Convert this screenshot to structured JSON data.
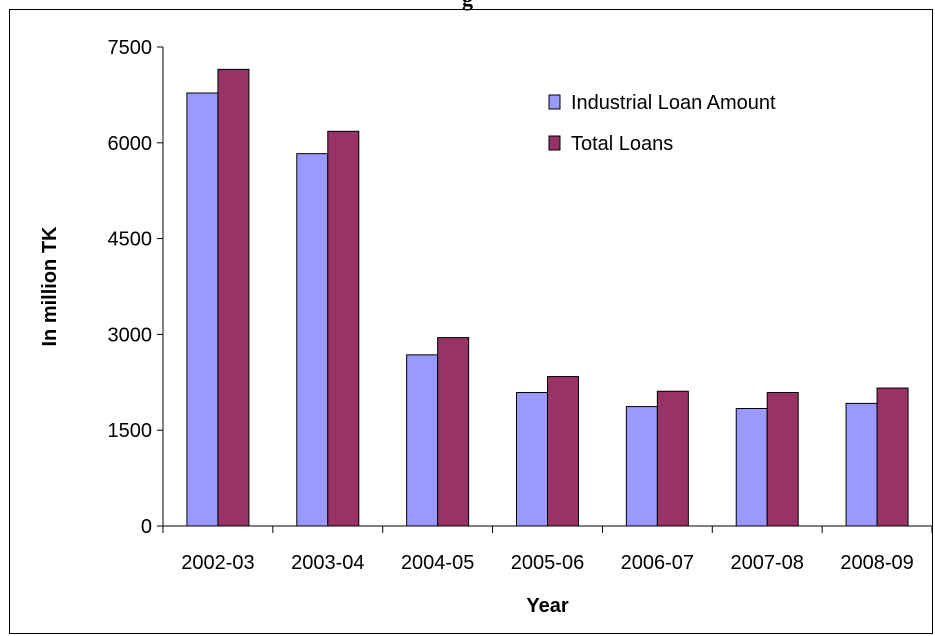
{
  "chart_data": {
    "type": "bar",
    "title": "g",
    "categories": [
      "2002-03",
      "2003-04",
      "2004-05",
      "2005-06",
      "2006-07",
      "2007-08",
      "2008-09"
    ],
    "series": [
      {
        "name": "Industrial Loan Amount",
        "color": "#9999ff",
        "values": [
          6780,
          5830,
          2680,
          2090,
          1870,
          1840,
          1920
        ]
      },
      {
        "name": "Total Loans",
        "color": "#993366",
        "values": [
          7150,
          6180,
          2950,
          2340,
          2110,
          2090,
          2160
        ]
      }
    ],
    "xlabel": "Year",
    "ylabel": "In million TK",
    "ylim": [
      0,
      7500
    ],
    "yticks": [
      "0",
      "1500",
      "3000",
      "4500",
      "6000",
      "7500"
    ],
    "grid": false,
    "legend_position": "top-right"
  }
}
